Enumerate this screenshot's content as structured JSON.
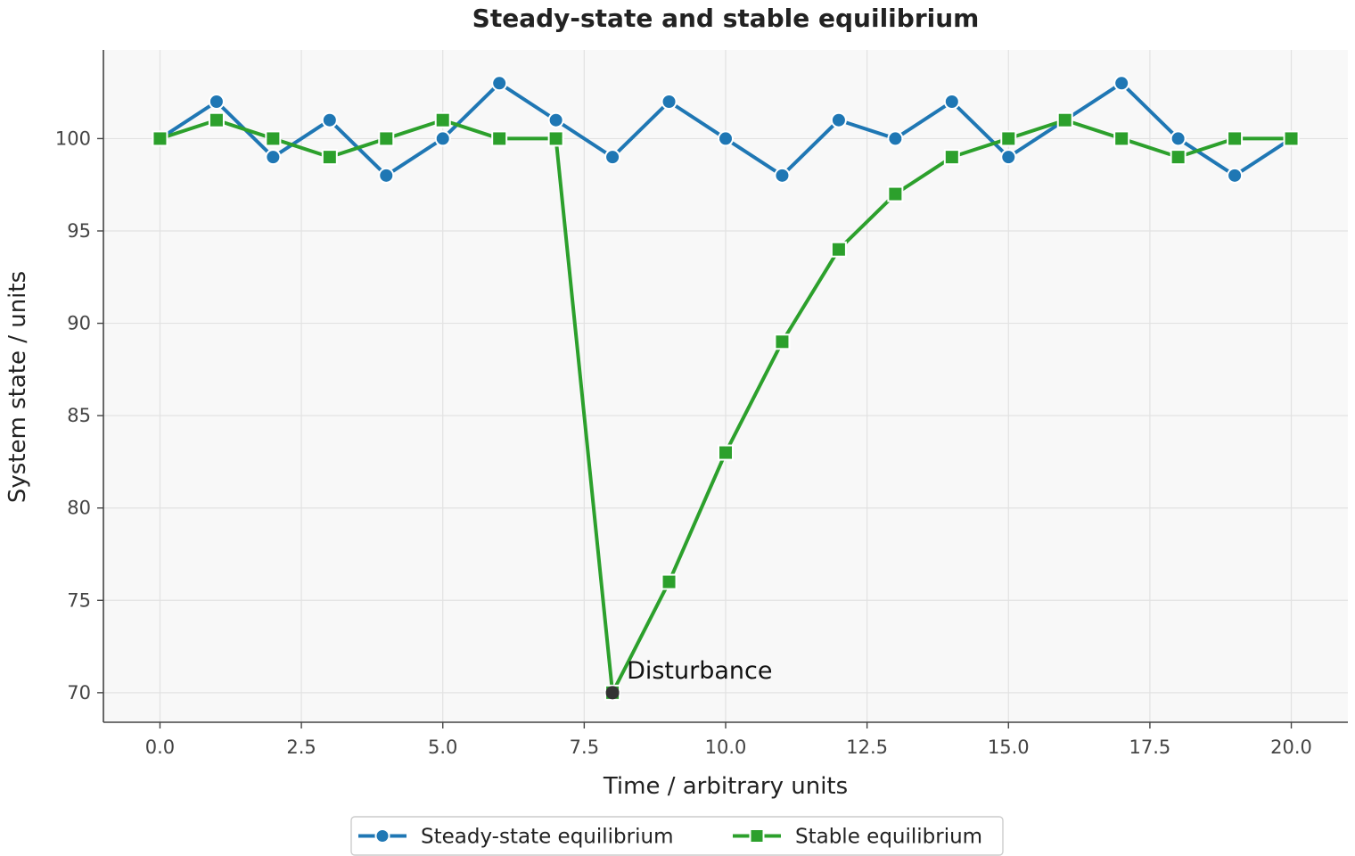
{
  "chart_data": {
    "type": "line",
    "title": "Steady-state and stable equilibrium",
    "xlabel": "Time / arbitrary units",
    "ylabel": "System state / units",
    "xlim": [
      -1,
      21
    ],
    "ylim": [
      68.4,
      104.8
    ],
    "xticks": [
      0,
      2.5,
      5,
      7.5,
      10,
      12.5,
      15,
      17.5,
      20
    ],
    "xtick_labels": [
      "0.0",
      "2.5",
      "5.0",
      "7.5",
      "10.0",
      "12.5",
      "15.0",
      "17.5",
      "20.0"
    ],
    "yticks": [
      70,
      75,
      80,
      85,
      90,
      95,
      100
    ],
    "ytick_labels": [
      "70",
      "75",
      "80",
      "85",
      "90",
      "95",
      "100"
    ],
    "grid": true,
    "legend_position": "bottom-center",
    "x": [
      0,
      1,
      2,
      3,
      4,
      5,
      6,
      7,
      8,
      9,
      10,
      11,
      12,
      13,
      14,
      15,
      16,
      17,
      18,
      19,
      20
    ],
    "series": [
      {
        "name": "Steady-state equilibrium",
        "color": "#1f77b4",
        "marker": "circle",
        "values": [
          100,
          102,
          99,
          101,
          98,
          100,
          103,
          101,
          99,
          102,
          100,
          98,
          101,
          100,
          102,
          99,
          101,
          103,
          100,
          98,
          100
        ]
      },
      {
        "name": "Stable equilibrium",
        "color": "#2ca02c",
        "marker": "square",
        "values": [
          100,
          101,
          100,
          99,
          100,
          101,
          100,
          100,
          70,
          76,
          83,
          89,
          94,
          97,
          99,
          100,
          101,
          100,
          99,
          100,
          100
        ]
      }
    ],
    "annotations": [
      {
        "text": "Disturbance",
        "x": 8,
        "y": 70,
        "marker_color": "#333333"
      }
    ]
  }
}
